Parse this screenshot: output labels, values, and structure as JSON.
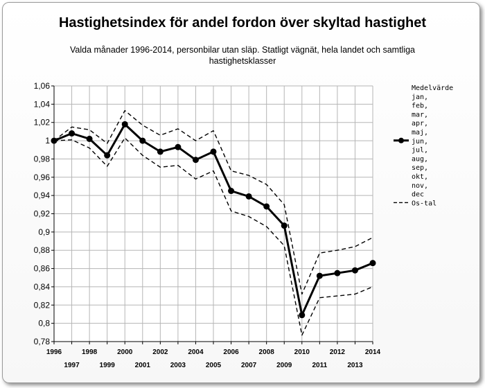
{
  "chart_data": {
    "type": "line",
    "title": "Hastighetsindex för andel fordon över skyltad hastighet",
    "subtitle": "Valda månader 1996-2014, personbilar utan släp. Statligt vägnät, hela landet och samtliga hastighetsklasser",
    "x": [
      1996,
      1997,
      1998,
      1999,
      2000,
      2001,
      2002,
      2003,
      2004,
      2005,
      2006,
      2007,
      2008,
      2009,
      2010,
      2011,
      2012,
      2013,
      2014
    ],
    "ylim": [
      0.78,
      1.06
    ],
    "yticks": [
      "1,06",
      "1,04",
      "1,02",
      "1",
      "0,98",
      "0,96",
      "0,94",
      "0,92",
      "0,9",
      "0,88",
      "0,86",
      "0,84",
      "0,82",
      "0,8",
      "0,78"
    ],
    "xticks_top": [
      "1996",
      "1998",
      "2000",
      "2002",
      "2004",
      "2006",
      "2008",
      "2010",
      "2012",
      "2014"
    ],
    "xticks_bottom": [
      "1997",
      "1999",
      "2001",
      "2003",
      "2005",
      "2007",
      "2009",
      "2011",
      "2013"
    ],
    "grid": true,
    "legend_position": "right",
    "legend_header": "Medelvärde",
    "legend_months": [
      "jan,",
      "feb,",
      "mar,",
      "apr,",
      "maj,",
      "jun,",
      "jul,",
      "aug,",
      "sep,",
      "okt,",
      "nov,",
      "dec"
    ],
    "series": [
      {
        "name": "Medelvärde jan, feb, mar, apr, maj, jun, jul, aug, sep, okt, nov, dec",
        "style": "solid-markers",
        "values": [
          1.0,
          1.008,
          1.002,
          0.984,
          1.018,
          1.0,
          0.988,
          0.993,
          0.979,
          0.988,
          0.945,
          0.939,
          0.928,
          0.907,
          0.809,
          0.852,
          0.855,
          0.858,
          0.866
        ]
      },
      {
        "name": "Os-tal",
        "style": "dashed",
        "values": [
          1.0,
          1.015,
          1.012,
          0.997,
          1.033,
          1.017,
          1.006,
          1.013,
          1.0,
          1.011,
          0.967,
          0.962,
          0.952,
          0.93,
          0.832,
          0.877,
          0.88,
          0.884,
          0.894
        ]
      },
      {
        "name": "Os-tal",
        "style": "dashed",
        "values": [
          1.0,
          1.001,
          0.992,
          0.972,
          1.003,
          0.984,
          0.971,
          0.973,
          0.958,
          0.967,
          0.923,
          0.917,
          0.906,
          0.885,
          0.787,
          0.828,
          0.83,
          0.832,
          0.84
        ]
      }
    ],
    "colors": {
      "line": "#000000",
      "plot_bg": "#ffffff",
      "grid": "#b5b5b5"
    }
  }
}
